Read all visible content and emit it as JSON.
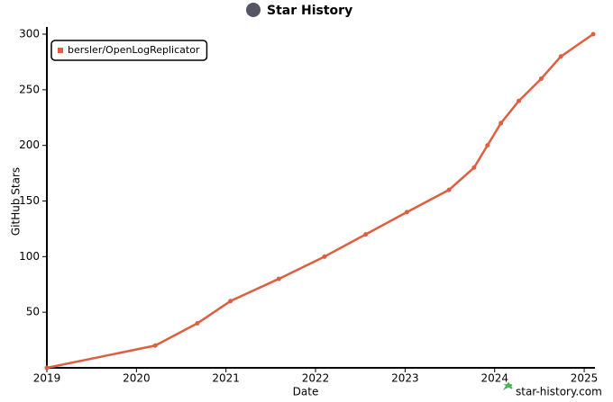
{
  "chart_data": {
    "type": "line",
    "title": "Star History",
    "x_label": "Date",
    "y_label": "GitHub Stars",
    "footer": "star-history.com",
    "x": [
      2019.0,
      2020.21,
      2020.68,
      2021.05,
      2021.59,
      2022.1,
      2022.56,
      2023.02,
      2023.49,
      2023.77,
      2023.92,
      2024.07,
      2024.27,
      2024.52,
      2024.74,
      2025.1
    ],
    "series": [
      {
        "name": "bersler/OpenLogReplicator",
        "color": "#dd5f3f",
        "values": [
          0,
          20,
          40,
          60,
          80,
          100,
          120,
          140,
          160,
          180,
          200,
          220,
          240,
          260,
          280,
          300
        ]
      }
    ],
    "xlim": [
      2019,
      2025.1
    ],
    "xticks": [
      2019,
      2020,
      2021,
      2022,
      2023,
      2024,
      2025
    ],
    "ylim": [
      0,
      300
    ],
    "yticks": [
      50,
      100,
      150,
      200,
      250,
      300
    ],
    "legend": "top-left"
  }
}
